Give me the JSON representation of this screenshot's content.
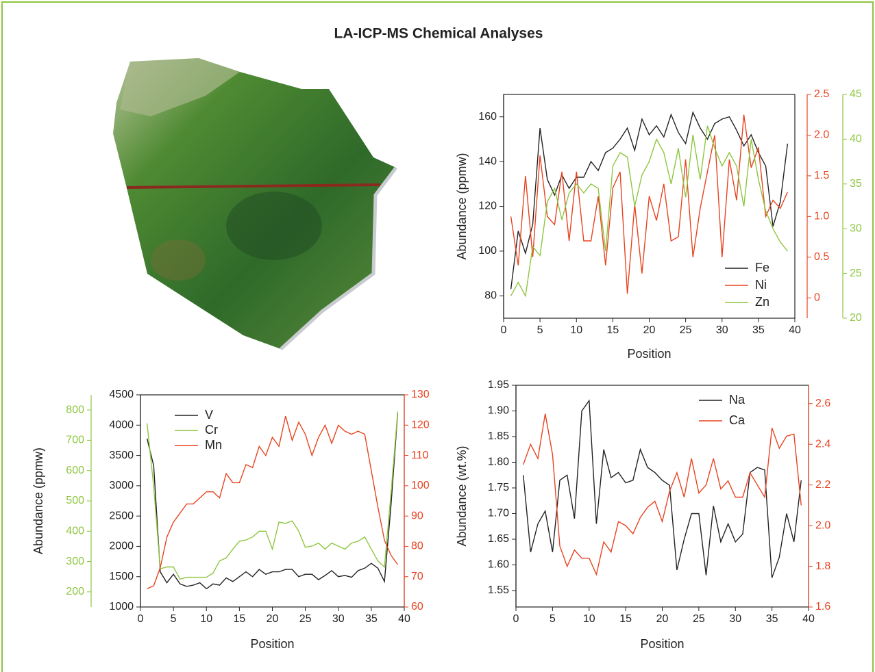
{
  "title": "LA-ICP-MS Chemical Analyses",
  "chart_data": [
    {
      "type": "line",
      "xlabel": "Position",
      "ylabel": "Abundance (ppmw)",
      "x": [
        1,
        2,
        3,
        4,
        5,
        6,
        7,
        8,
        9,
        10,
        11,
        12,
        13,
        14,
        15,
        16,
        17,
        18,
        19,
        20,
        21,
        22,
        23,
        24,
        25,
        26,
        27,
        28,
        29,
        30,
        31,
        32,
        33,
        34,
        35,
        36,
        37,
        38,
        39
      ],
      "xlim": [
        0,
        40
      ],
      "xticks": [
        0,
        5,
        10,
        15,
        20,
        25,
        30,
        35,
        40
      ],
      "ylim": [
        70,
        170
      ],
      "yticks": [
        80,
        100,
        120,
        140,
        160
      ],
      "y2lim": [
        -0.25,
        2.5
      ],
      "y2ticks": [
        0,
        0.5,
        {
          "value": 1,
          "label": "1.0"
        },
        1.5,
        {
          "value": 2,
          "label": "2.0"
        },
        2.5
      ],
      "y3lim": [
        20,
        45
      ],
      "y3ticks": [
        20,
        25,
        30,
        35,
        40,
        45
      ],
      "series": [
        {
          "name": "Fe",
          "color": "#222222",
          "values": [
            83,
            109,
            99,
            112,
            155,
            132,
            125,
            134,
            128,
            133,
            133,
            140,
            136,
            144,
            146,
            150,
            155,
            145,
            159,
            152,
            156,
            151,
            161,
            153,
            148,
            162,
            155,
            150,
            157,
            159,
            160,
            154,
            147,
            152,
            144,
            138,
            111,
            122,
            148
          ]
        },
        {
          "name": "Ni",
          "color": "#e8431f",
          "axis": "y2",
          "values": [
            1.0,
            0.4,
            1.5,
            0.5,
            1.75,
            1.0,
            0.9,
            1.55,
            0.7,
            1.55,
            0.7,
            0.7,
            1.25,
            0.4,
            1.35,
            1.55,
            0.05,
            1.15,
            0.3,
            1.25,
            0.95,
            1.4,
            0.7,
            0.75,
            1.7,
            0.5,
            1.1,
            1.55,
            2.0,
            0.5,
            1.7,
            1.2,
            2.25,
            1.6,
            1.85,
            1.0,
            1.2,
            1.1,
            1.3
          ]
        },
        {
          "name": "Zn",
          "color": "#8dc63f",
          "axis": "y3",
          "values": [
            22.5,
            24,
            22.5,
            28,
            27,
            33,
            34.5,
            31,
            34,
            35,
            34,
            35,
            34.5,
            27.5,
            37,
            38.5,
            38,
            32.5,
            36,
            37.5,
            40,
            38.5,
            35,
            39,
            33.5,
            40.5,
            35.5,
            41.5,
            39,
            37,
            38.5,
            37,
            32.5,
            40,
            35.5,
            32,
            30,
            28.5,
            27.5
          ]
        }
      ]
    },
    {
      "type": "line",
      "xlabel": "Position",
      "ylabel": "Abundance (ppmw)",
      "x": [
        1,
        2,
        3,
        4,
        5,
        6,
        7,
        8,
        9,
        10,
        11,
        12,
        13,
        14,
        15,
        16,
        17,
        18,
        19,
        20,
        21,
        22,
        23,
        24,
        25,
        26,
        27,
        28,
        29,
        30,
        31,
        32,
        33,
        34,
        35,
        36,
        37,
        38,
        39
      ],
      "xlim": [
        0,
        40
      ],
      "xticks": [
        0,
        5,
        10,
        15,
        20,
        25,
        30,
        35,
        40
      ],
      "ylim": [
        1000,
        4500
      ],
      "yticks": [
        1000,
        1500,
        2000,
        2500,
        3000,
        3500,
        4000,
        4500
      ],
      "y2lim": [
        60,
        130
      ],
      "y2ticks": [
        60,
        70,
        80,
        90,
        100,
        110,
        120,
        130
      ],
      "y3lim": [
        150,
        850
      ],
      "y3ticks": [
        200,
        300,
        400,
        500,
        600,
        700,
        800
      ],
      "series": [
        {
          "name": "V",
          "color": "#222222",
          "values": [
            3780,
            3330,
            1580,
            1400,
            1540,
            1380,
            1340,
            1360,
            1400,
            1300,
            1380,
            1360,
            1480,
            1420,
            1500,
            1580,
            1500,
            1620,
            1540,
            1580,
            1580,
            1620,
            1620,
            1500,
            1540,
            1540,
            1450,
            1520,
            1600,
            1500,
            1520,
            1490,
            1600,
            1640,
            1720,
            1640,
            1420,
            2700,
            4200
          ]
        },
        {
          "name": "Cr",
          "color": "#8dc63f",
          "axis": "y3",
          "values": [
            756,
            548,
            276,
            282,
            282,
            242,
            248,
            248,
            248,
            248,
            262,
            302,
            312,
            341,
            367,
            371,
            381,
            400,
            400,
            341,
            430,
            426,
            434,
            400,
            347,
            351,
            361,
            341,
            361,
            351,
            341,
            361,
            367,
            381,
            341,
            302,
            282,
            529,
            795
          ]
        },
        {
          "name": "Mn",
          "color": "#e8431f",
          "axis": "y2",
          "values": [
            66,
            67,
            73,
            83,
            88,
            91,
            94,
            94,
            96,
            98,
            98,
            96,
            104,
            101,
            101,
            107,
            106,
            113,
            110,
            116,
            113,
            123,
            115,
            121,
            117,
            110,
            116,
            120,
            114,
            120,
            118,
            117,
            118,
            117,
            105,
            93,
            82,
            77,
            74
          ]
        }
      ]
    },
    {
      "type": "line",
      "xlabel": "Position",
      "ylabel": "Abundance (wt.%)",
      "x": [
        1,
        2,
        3,
        4,
        5,
        6,
        7,
        8,
        9,
        10,
        11,
        12,
        13,
        14,
        15,
        16,
        17,
        18,
        19,
        20,
        21,
        22,
        23,
        24,
        25,
        26,
        27,
        28,
        29,
        30,
        31,
        32,
        33,
        34,
        35,
        36,
        37,
        38,
        39
      ],
      "xlim": [
        0,
        40
      ],
      "xticks": [
        0,
        5,
        10,
        15,
        20,
        25,
        30,
        35,
        40
      ],
      "ylim": [
        1.518,
        1.95
      ],
      "yticks": [
        1.55,
        {
          "value": 1.6,
          "label": "1.60"
        },
        1.65,
        {
          "value": 1.7,
          "label": "1.70"
        },
        1.75,
        {
          "value": 1.8,
          "label": "1.80"
        },
        1.85,
        {
          "value": 1.9,
          "label": "1.90"
        },
        1.95
      ],
      "y2lim": [
        1.6,
        2.69
      ],
      "y2ticks": [
        1.6,
        1.8,
        {
          "value": 2,
          "label": "2.0"
        },
        2.2,
        2.4,
        2.6
      ],
      "series": [
        {
          "name": "Na",
          "color": "#222222",
          "values": [
            1.775,
            1.625,
            1.68,
            1.705,
            1.625,
            1.765,
            1.775,
            1.69,
            1.9,
            1.92,
            1.68,
            1.825,
            1.77,
            1.78,
            1.76,
            1.765,
            1.825,
            1.79,
            1.78,
            1.765,
            1.755,
            1.59,
            1.65,
            1.7,
            1.7,
            1.58,
            1.715,
            1.645,
            1.68,
            1.645,
            1.66,
            1.78,
            1.79,
            1.785,
            1.575,
            1.615,
            1.7,
            1.645,
            1.765
          ]
        },
        {
          "name": "Ca",
          "color": "#e8431f",
          "axis": "y2",
          "values": [
            2.3,
            2.4,
            2.33,
            2.55,
            2.35,
            1.9,
            1.8,
            1.88,
            1.84,
            1.84,
            1.76,
            1.92,
            1.87,
            2.02,
            2.0,
            1.96,
            2.04,
            2.09,
            2.12,
            2.02,
            2.17,
            2.26,
            2.14,
            2.33,
            2.16,
            2.2,
            2.33,
            2.18,
            2.22,
            2.14,
            2.14,
            2.26,
            2.2,
            2.14,
            2.48,
            2.38,
            2.44,
            2.45,
            2.1
          ]
        }
      ]
    }
  ]
}
